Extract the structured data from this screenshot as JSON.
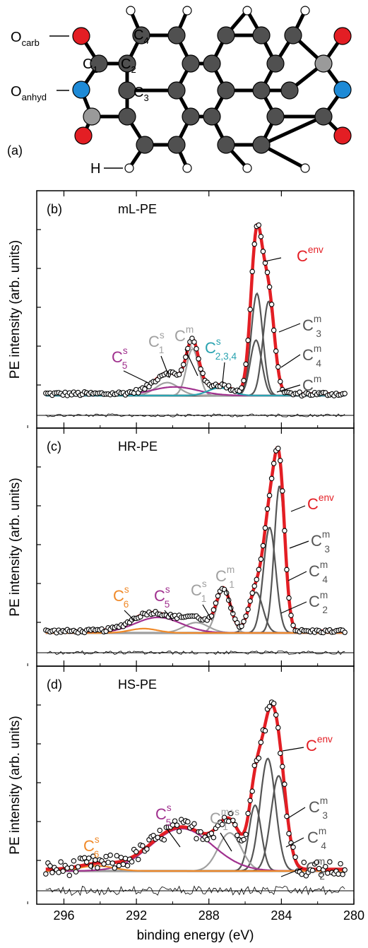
{
  "figure": {
    "panel_a": {
      "tag": "(a)",
      "labels": {
        "o_carb": "O",
        "o_carb_sub": "carb",
        "o_anhyd": "O",
        "o_anhyd_sub": "anhyd",
        "h": "H",
        "c1": "C",
        "c1_sub": "1",
        "c2": "C",
        "c2_sub": "2",
        "c3": "C",
        "c3_sub": "3",
        "c4": "C",
        "c4_sub": "4"
      },
      "atom_colors": {
        "carbon": "#505050",
        "anhydride_carbon": "#9a9a9a",
        "carbonyl_oxygen": "#e31e24",
        "anhydride_oxygen": "#1e8ad6",
        "hydrogen": "#ffffff"
      }
    },
    "shared_xlabel": "binding energy (eV)",
    "colors": {
      "envelope": "#e31e24",
      "main_components": "#555555",
      "c1": "#a0a0a0",
      "c5": "#a0308e",
      "c6": "#f08a2a",
      "c234": "#2aa3b0",
      "data_points": "#000000"
    }
  },
  "chart_data": [
    {
      "type": "line",
      "panel": "(b)",
      "title": "mL-PE",
      "ylabel": "PE intensity (arb. units)",
      "xlabel": "",
      "xlim": [
        297.5,
        280
      ],
      "x_reversed": true,
      "xticks": [
        296,
        292,
        288,
        284,
        280
      ],
      "background": 0.01,
      "components": [
        {
          "name": "C_3^m",
          "label": "C",
          "sup": "m",
          "sub": "3",
          "center": 284.7,
          "height": 0.545,
          "fwhm": 0.75,
          "color_key": "main_components"
        },
        {
          "name": "C_4^m",
          "label": "C",
          "sup": "m",
          "sub": "4",
          "center": 285.35,
          "height": 0.59,
          "fwhm": 0.75,
          "color_key": "main_components"
        },
        {
          "name": "C_2^m",
          "label": "C",
          "sup": "m",
          "sub": "2",
          "center": 285.4,
          "height": 0.32,
          "fwhm": 0.75,
          "color_key": "main_components"
        },
        {
          "name": "C_1^m",
          "label": "C",
          "sup": "m",
          "sub": "1",
          "center": 288.9,
          "height": 0.27,
          "fwhm": 0.8,
          "color_key": "c1"
        },
        {
          "name": "C_1^s",
          "label": "C",
          "sup": "s",
          "sub": "1",
          "center": 290.3,
          "height": 0.075,
          "fwhm": 1.5,
          "color_key": "c1"
        },
        {
          "name": "C_5^s",
          "label": "C",
          "sup": "s",
          "sub": "5",
          "center": 289.9,
          "height": 0.05,
          "fwhm": 3.0,
          "color_key": "c5"
        },
        {
          "name": "C_2,3,4^s",
          "label": "C",
          "sup": "s",
          "sub": "2,3,4",
          "center": 287.4,
          "height": 0.045,
          "fwhm": 1.5,
          "color_key": "c234"
        }
      ],
      "envelope_label": {
        "label": "C",
        "sup": "env"
      },
      "data_count": 140,
      "noise": 0.012,
      "residual_noise": 0.03
    },
    {
      "type": "line",
      "panel": "(c)",
      "title": "HR-PE",
      "ylabel": "PE intensity (arb. units)",
      "xlabel": "",
      "xlim": [
        297.5,
        280
      ],
      "x_reversed": true,
      "xticks": [
        296,
        292,
        288,
        284,
        280
      ],
      "background": 0.01,
      "components": [
        {
          "name": "C_3^m",
          "label": "C",
          "sup": "m",
          "sub": "3",
          "center": 284.1,
          "height": 0.85,
          "fwhm": 0.7,
          "color_key": "main_components"
        },
        {
          "name": "C_4^m",
          "label": "C",
          "sup": "m",
          "sub": "4",
          "center": 284.65,
          "height": 0.61,
          "fwhm": 0.8,
          "color_key": "main_components"
        },
        {
          "name": "C_2^m",
          "label": "C",
          "sup": "m",
          "sub": "2",
          "center": 285.4,
          "height": 0.235,
          "fwhm": 0.9,
          "color_key": "main_components"
        },
        {
          "name": "C_1^m",
          "label": "C",
          "sup": "m",
          "sub": "1",
          "center": 287.2,
          "height": 0.245,
          "fwhm": 0.9,
          "color_key": "c1"
        },
        {
          "name": "C_1^s",
          "label": "C",
          "sup": "s",
          "sub": "1",
          "center": 288.7,
          "height": 0.06,
          "fwhm": 1.6,
          "color_key": "c1"
        },
        {
          "name": "C_5^s",
          "label": "C",
          "sup": "s",
          "sub": "5",
          "center": 290.8,
          "height": 0.09,
          "fwhm": 3.0,
          "color_key": "c5"
        },
        {
          "name": "C_6^s",
          "label": "C",
          "sup": "s",
          "sub": "6",
          "center": 291.6,
          "height": 0.025,
          "fwhm": 1.8,
          "color_key": "c6"
        }
      ],
      "envelope_label": {
        "label": "C",
        "sup": "env"
      },
      "data_count": 140,
      "noise": 0.01,
      "residual_noise": 0.035
    },
    {
      "type": "line",
      "panel": "(d)",
      "title": "HS-PE",
      "ylabel": "PE intensity (arb. units)",
      "xlabel": "binding energy (eV)",
      "xlim": [
        297.5,
        280
      ],
      "x_reversed": true,
      "xticks": [
        296,
        292,
        288,
        284,
        280
      ],
      "background": 0.01,
      "components": [
        {
          "name": "C_3^m",
          "label": "C",
          "sup": "m",
          "sub": "3",
          "center": 284.15,
          "height": 0.55,
          "fwhm": 1.0,
          "color_key": "main_components"
        },
        {
          "name": "C_4^m",
          "label": "C",
          "sup": "m",
          "sub": "4",
          "center": 284.75,
          "height": 0.65,
          "fwhm": 1.0,
          "color_key": "main_components"
        },
        {
          "name": "C_2^m",
          "label": "C",
          "sup": "m",
          "sub": "2",
          "center": 285.45,
          "height": 0.38,
          "fwhm": 0.8,
          "color_key": "main_components"
        },
        {
          "name": "C_1^m+s",
          "label": "C",
          "sup": "m+s",
          "sub": "1",
          "center": 286.85,
          "height": 0.22,
          "fwhm": 1.5,
          "color_key": "c1"
        },
        {
          "name": "C_5^s",
          "label": "C",
          "sup": "s",
          "sub": "5",
          "center": 289.5,
          "height": 0.245,
          "fwhm": 4.0,
          "color_key": "c5"
        },
        {
          "name": "C_6^s",
          "label": "C",
          "sup": "s",
          "sub": "6",
          "center": 294.2,
          "height": 0.03,
          "fwhm": 2.2,
          "color_key": "c6"
        }
      ],
      "envelope_label": {
        "label": "C",
        "sup": "env"
      },
      "data_count": 140,
      "noise": 0.045,
      "residual_noise": 0.09
    }
  ]
}
